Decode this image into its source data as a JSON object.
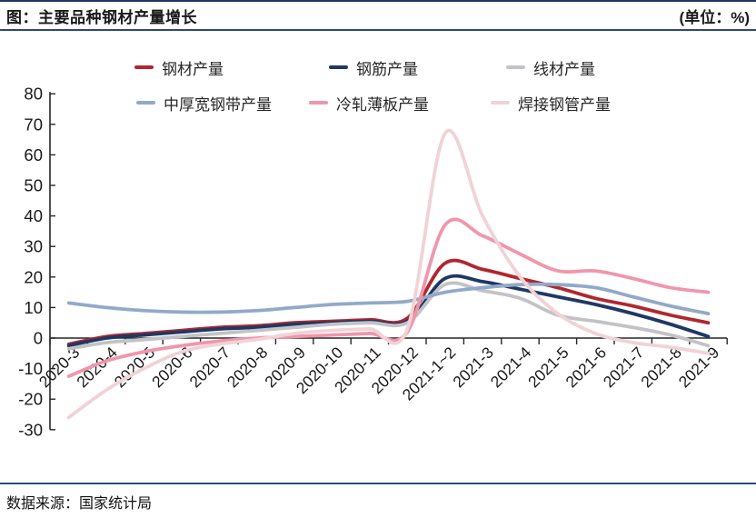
{
  "header": {
    "title": "图：主要品种钢材产量增长",
    "unit": "(单位：%)"
  },
  "footer": {
    "source": "数据来源：国家统计局"
  },
  "accent_colors": {
    "rule_navy": "#2a4a7d",
    "axis": "#262626"
  },
  "chart_data": {
    "type": "line",
    "title": "图：主要品种钢材产量增长",
    "unit_label": "(单位：%)",
    "grid": false,
    "smoothed": true,
    "legend_position": "top",
    "x_label_rotation": -45,
    "ylim": [
      -30,
      80
    ],
    "yticks": [
      80,
      70,
      60,
      50,
      40,
      30,
      20,
      10,
      0,
      -10,
      -20,
      -30
    ],
    "categories": [
      "2020-3",
      "2020-4",
      "2020-5",
      "2020-6",
      "2020-7",
      "2020-8",
      "2020-9",
      "2020-10",
      "2020-11",
      "2020-12",
      "2021-1~2",
      "2021-3",
      "2021-4",
      "2021-5",
      "2021-6",
      "2021-7",
      "2021-8",
      "2021-9"
    ],
    "series": [
      {
        "name": "钢材产量",
        "color": "#b2262e",
        "values": [
          -2,
          0.5,
          1.5,
          2.5,
          3.5,
          4,
          5,
          5.5,
          6,
          6.5,
          24.5,
          22.5,
          19.5,
          16.5,
          13,
          10.5,
          7.5,
          5
        ]
      },
      {
        "name": "钢筋产量",
        "color": "#1f3864",
        "values": [
          -2.5,
          0,
          1,
          2,
          3,
          3.5,
          4.5,
          5,
          5.5,
          5.5,
          19.5,
          18.5,
          16,
          13.5,
          11,
          8,
          4.5,
          0.5
        ]
      },
      {
        "name": "线材产量",
        "color": "#c3c3c7",
        "values": [
          -3.5,
          -1.5,
          -0.5,
          0.5,
          1.5,
          2.5,
          3.5,
          4.5,
          5,
          5,
          17.5,
          15.5,
          13,
          7.5,
          5.5,
          3.5,
          1,
          -2.5
        ]
      },
      {
        "name": "中厚宽钢带产量",
        "color": "#92a9c9",
        "values": [
          11.5,
          10,
          9,
          8.5,
          8.5,
          9,
          10,
          11,
          11.5,
          12,
          15,
          16.5,
          17.5,
          17.5,
          16.5,
          13.5,
          10.5,
          8
        ]
      },
      {
        "name": "冷轧薄板产量",
        "color": "#f096ac",
        "values": [
          -12.5,
          -7.5,
          -4.5,
          -2.5,
          -1,
          0,
          0.5,
          1,
          1.5,
          2,
          37,
          33.5,
          27.5,
          22,
          22,
          19.5,
          16.5,
          15
        ]
      },
      {
        "name": "焊接钢管产量",
        "color": "#f0d3d6",
        "values": [
          -26,
          -17,
          -10,
          -4.5,
          -2,
          -0.5,
          1.5,
          2.5,
          3,
          3,
          67,
          40,
          20,
          8,
          1.5,
          -1.5,
          -3,
          -5
        ]
      }
    ]
  }
}
